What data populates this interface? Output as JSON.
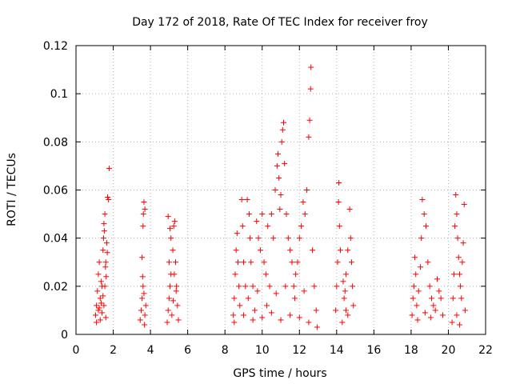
{
  "chart_data": {
    "type": "scatter",
    "title": "Day 172 of 2018, Rate Of TEC Index for receiver froy",
    "xlabel": "GPS time / hours",
    "ylabel": "ROTI / TECUs",
    "xlim": [
      0,
      22
    ],
    "ylim": [
      0,
      0.12
    ],
    "xticks": [
      0,
      2,
      4,
      6,
      8,
      10,
      12,
      14,
      16,
      18,
      20,
      22
    ],
    "xtick_labels": [
      "0",
      "2",
      "4",
      "6",
      "8",
      "10",
      "12",
      "14",
      "16",
      "18",
      "20",
      "22"
    ],
    "yticks": [
      0,
      0.02,
      0.04,
      0.06,
      0.08,
      0.1,
      0.12
    ],
    "ytick_labels": [
      "0",
      "0.02",
      "0.04",
      "0.06",
      "0.08",
      "0.1",
      "0.12"
    ],
    "grid": true,
    "marker": "+",
    "series": [
      {
        "name": "ROTI",
        "color": "#ff0000",
        "points": [
          [
            1.05,
            0.008
          ],
          [
            1.1,
            0.012
          ],
          [
            1.15,
            0.018
          ],
          [
            1.2,
            0.025
          ],
          [
            1.25,
            0.03
          ],
          [
            1.3,
            0.015
          ],
          [
            1.35,
            0.022
          ],
          [
            1.4,
            0.02
          ],
          [
            1.45,
            0.035
          ],
          [
            1.5,
            0.046
          ],
          [
            1.55,
            0.05
          ],
          [
            1.6,
            0.03
          ],
          [
            1.65,
            0.038
          ],
          [
            1.7,
            0.057
          ],
          [
            1.75,
            0.056
          ],
          [
            1.78,
            0.069
          ],
          [
            1.2,
            0.01
          ],
          [
            1.3,
            0.006
          ],
          [
            1.4,
            0.009
          ],
          [
            1.5,
            0.012
          ],
          [
            1.6,
            0.007
          ],
          [
            1.1,
            0.005
          ],
          [
            1.45,
            0.016
          ],
          [
            1.55,
            0.02
          ],
          [
            1.62,
            0.024
          ],
          [
            1.35,
            0.013
          ],
          [
            1.25,
            0.011
          ],
          [
            1.58,
            0.028
          ],
          [
            1.68,
            0.034
          ],
          [
            1.48,
            0.04
          ],
          [
            1.52,
            0.043
          ],
          [
            3.45,
            0.006
          ],
          [
            3.5,
            0.01
          ],
          [
            3.55,
            0.015
          ],
          [
            3.6,
            0.02
          ],
          [
            3.55,
            0.032
          ],
          [
            3.6,
            0.045
          ],
          [
            3.62,
            0.05
          ],
          [
            3.65,
            0.055
          ],
          [
            3.7,
            0.052
          ],
          [
            3.75,
            0.012
          ],
          [
            3.7,
            0.008
          ],
          [
            3.65,
            0.017
          ],
          [
            3.58,
            0.024
          ],
          [
            3.68,
            0.004
          ],
          [
            4.9,
            0.005
          ],
          [
            4.95,
            0.01
          ],
          [
            5.0,
            0.015
          ],
          [
            5.05,
            0.02
          ],
          [
            5.1,
            0.025
          ],
          [
            5.0,
            0.03
          ],
          [
            4.95,
            0.049
          ],
          [
            5.1,
            0.04
          ],
          [
            5.2,
            0.035
          ],
          [
            5.25,
            0.045
          ],
          [
            5.3,
            0.047
          ],
          [
            5.35,
            0.03
          ],
          [
            5.4,
            0.02
          ],
          [
            5.45,
            0.012
          ],
          [
            5.5,
            0.006
          ],
          [
            5.15,
            0.008
          ],
          [
            5.22,
            0.014
          ],
          [
            5.38,
            0.018
          ],
          [
            5.28,
            0.025
          ],
          [
            5.05,
            0.044
          ],
          [
            8.45,
            0.008
          ],
          [
            8.5,
            0.015
          ],
          [
            8.55,
            0.025
          ],
          [
            8.6,
            0.035
          ],
          [
            8.65,
            0.042
          ],
          [
            8.7,
            0.03
          ],
          [
            8.75,
            0.02
          ],
          [
            8.8,
            0.012
          ],
          [
            8.9,
            0.056
          ],
          [
            8.95,
            0.045
          ],
          [
            9.0,
            0.03
          ],
          [
            9.1,
            0.02
          ],
          [
            9.2,
            0.056
          ],
          [
            9.3,
            0.05
          ],
          [
            9.35,
            0.04
          ],
          [
            9.4,
            0.03
          ],
          [
            9.5,
            0.02
          ],
          [
            9.6,
            0.01
          ],
          [
            9.7,
            0.047
          ],
          [
            9.8,
            0.04
          ],
          [
            9.9,
            0.035
          ],
          [
            10.0,
            0.05
          ],
          [
            10.1,
            0.03
          ],
          [
            10.2,
            0.025
          ],
          [
            10.3,
            0.045
          ],
          [
            10.4,
            0.02
          ],
          [
            10.5,
            0.05
          ],
          [
            10.6,
            0.04
          ],
          [
            10.7,
            0.06
          ],
          [
            10.8,
            0.07
          ],
          [
            10.85,
            0.075
          ],
          [
            10.9,
            0.065
          ],
          [
            10.95,
            0.052
          ],
          [
            11.0,
            0.058
          ],
          [
            11.05,
            0.08
          ],
          [
            11.1,
            0.085
          ],
          [
            11.15,
            0.088
          ],
          [
            11.2,
            0.071
          ],
          [
            11.3,
            0.05
          ],
          [
            11.4,
            0.04
          ],
          [
            11.5,
            0.035
          ],
          [
            11.6,
            0.03
          ],
          [
            11.7,
            0.02
          ],
          [
            11.8,
            0.025
          ],
          [
            11.9,
            0.03
          ],
          [
            12.0,
            0.04
          ],
          [
            12.1,
            0.045
          ],
          [
            12.2,
            0.055
          ],
          [
            12.3,
            0.05
          ],
          [
            12.4,
            0.06
          ],
          [
            12.5,
            0.082
          ],
          [
            12.55,
            0.089
          ],
          [
            12.6,
            0.102
          ],
          [
            12.62,
            0.111
          ],
          [
            12.7,
            0.035
          ],
          [
            12.8,
            0.02
          ],
          [
            12.9,
            0.01
          ],
          [
            8.5,
            0.005
          ],
          [
            9.0,
            0.008
          ],
          [
            9.5,
            0.006
          ],
          [
            10.0,
            0.007
          ],
          [
            10.5,
            0.009
          ],
          [
            11.0,
            0.006
          ],
          [
            11.5,
            0.008
          ],
          [
            12.0,
            0.007
          ],
          [
            12.5,
            0.005
          ],
          [
            12.95,
            0.003
          ],
          [
            9.25,
            0.015
          ],
          [
            9.75,
            0.018
          ],
          [
            10.25,
            0.012
          ],
          [
            10.75,
            0.017
          ],
          [
            11.25,
            0.02
          ],
          [
            11.75,
            0.015
          ],
          [
            12.25,
            0.018
          ],
          [
            13.95,
            0.01
          ],
          [
            14.0,
            0.02
          ],
          [
            14.05,
            0.03
          ],
          [
            14.1,
            0.055
          ],
          [
            14.12,
            0.063
          ],
          [
            14.15,
            0.045
          ],
          [
            14.2,
            0.035
          ],
          [
            14.3,
            0.005
          ],
          [
            14.4,
            0.015
          ],
          [
            14.5,
            0.025
          ],
          [
            14.6,
            0.035
          ],
          [
            14.7,
            0.052
          ],
          [
            14.75,
            0.04
          ],
          [
            14.8,
            0.03
          ],
          [
            14.85,
            0.02
          ],
          [
            14.5,
            0.01
          ],
          [
            14.6,
            0.008
          ],
          [
            14.9,
            0.012
          ],
          [
            14.35,
            0.022
          ],
          [
            14.45,
            0.018
          ],
          [
            18.05,
            0.008
          ],
          [
            18.1,
            0.015
          ],
          [
            18.15,
            0.02
          ],
          [
            18.2,
            0.032
          ],
          [
            18.25,
            0.025
          ],
          [
            18.3,
            0.012
          ],
          [
            18.4,
            0.018
          ],
          [
            18.5,
            0.028
          ],
          [
            18.55,
            0.04
          ],
          [
            18.6,
            0.056
          ],
          [
            18.7,
            0.05
          ],
          [
            18.8,
            0.045
          ],
          [
            18.9,
            0.03
          ],
          [
            19.0,
            0.02
          ],
          [
            19.1,
            0.015
          ],
          [
            19.2,
            0.012
          ],
          [
            19.3,
            0.01
          ],
          [
            19.4,
            0.023
          ],
          [
            19.5,
            0.018
          ],
          [
            19.6,
            0.015
          ],
          [
            19.7,
            0.008
          ],
          [
            20.2,
            0.005
          ],
          [
            20.25,
            0.015
          ],
          [
            20.3,
            0.025
          ],
          [
            20.35,
            0.045
          ],
          [
            20.4,
            0.058
          ],
          [
            20.45,
            0.05
          ],
          [
            20.5,
            0.04
          ],
          [
            20.55,
            0.032
          ],
          [
            20.6,
            0.025
          ],
          [
            20.65,
            0.02
          ],
          [
            20.7,
            0.015
          ],
          [
            20.75,
            0.03
          ],
          [
            20.8,
            0.038
          ],
          [
            20.85,
            0.054
          ],
          [
            20.9,
            0.01
          ],
          [
            18.35,
            0.006
          ],
          [
            18.75,
            0.009
          ],
          [
            19.05,
            0.007
          ],
          [
            20.45,
            0.008
          ],
          [
            20.6,
            0.004
          ]
        ]
      }
    ]
  }
}
